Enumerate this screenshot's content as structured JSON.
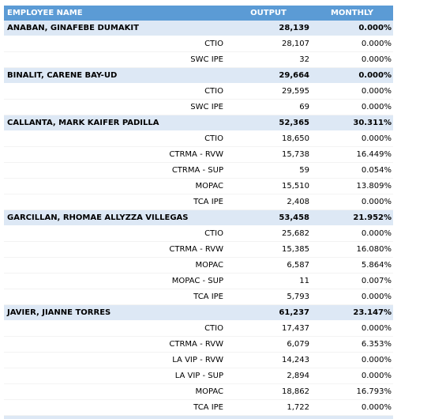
{
  "header": {
    "name": "EMPLOYEE NAME",
    "output": "OUTPUT",
    "monthly": "MONTHLY"
  },
  "employees": [
    {
      "name": "ANABAN, GINAFEBE DUMAKIT",
      "output": "28,139",
      "monthly": "0.000%",
      "items": [
        {
          "label": "CTIO",
          "output": "28,107",
          "monthly": "0.000%"
        },
        {
          "label": "SWC IPE",
          "output": "32",
          "monthly": "0.000%"
        }
      ]
    },
    {
      "name": "BINALIT, CARENE BAY-UD",
      "output": "29,664",
      "monthly": "0.000%",
      "items": [
        {
          "label": "CTIO",
          "output": "29,595",
          "monthly": "0.000%"
        },
        {
          "label": "SWC IPE",
          "output": "69",
          "monthly": "0.000%"
        }
      ]
    },
    {
      "name": "CALLANTA, MARK KAIFER PADILLA",
      "output": "52,365",
      "monthly": "30.311%",
      "items": [
        {
          "label": "CTIO",
          "output": "18,650",
          "monthly": "0.000%"
        },
        {
          "label": "CTRMA - RVW",
          "output": "15,738",
          "monthly": "16.449%"
        },
        {
          "label": "CTRMA - SUP",
          "output": "59",
          "monthly": "0.054%"
        },
        {
          "label": "MOPAC",
          "output": "15,510",
          "monthly": "13.809%"
        },
        {
          "label": "TCA IPE",
          "output": "2,408",
          "monthly": "0.000%"
        }
      ]
    },
    {
      "name": "GARCILLAN, RHOMAE ALLYZZA VILLEGAS",
      "output": "53,458",
      "monthly": "21.952%",
      "items": [
        {
          "label": "CTIO",
          "output": "25,682",
          "monthly": "0.000%"
        },
        {
          "label": "CTRMA - RVW",
          "output": "15,385",
          "monthly": "16.080%"
        },
        {
          "label": "MOPAC",
          "output": "6,587",
          "monthly": "5.864%"
        },
        {
          "label": "MOPAC - SUP",
          "output": "11",
          "monthly": "0.007%"
        },
        {
          "label": "TCA IPE",
          "output": "5,793",
          "monthly": "0.000%"
        }
      ]
    },
    {
      "name": "JAVIER, JIANNE TORRES",
      "output": "61,237",
      "monthly": "23.147%",
      "items": [
        {
          "label": "CTIO",
          "output": "17,437",
          "monthly": "0.000%"
        },
        {
          "label": "CTRMA - RVW",
          "output": "6,079",
          "monthly": "6.353%"
        },
        {
          "label": "LA VIP - RVW",
          "output": "14,243",
          "monthly": "0.000%"
        },
        {
          "label": "LA VIP - SUP",
          "output": "2,894",
          "monthly": "0.000%"
        },
        {
          "label": "MOPAC",
          "output": "18,862",
          "monthly": "16.793%"
        },
        {
          "label": "TCA IPE",
          "output": "1,722",
          "monthly": "0.000%"
        }
      ]
    }
  ]
}
